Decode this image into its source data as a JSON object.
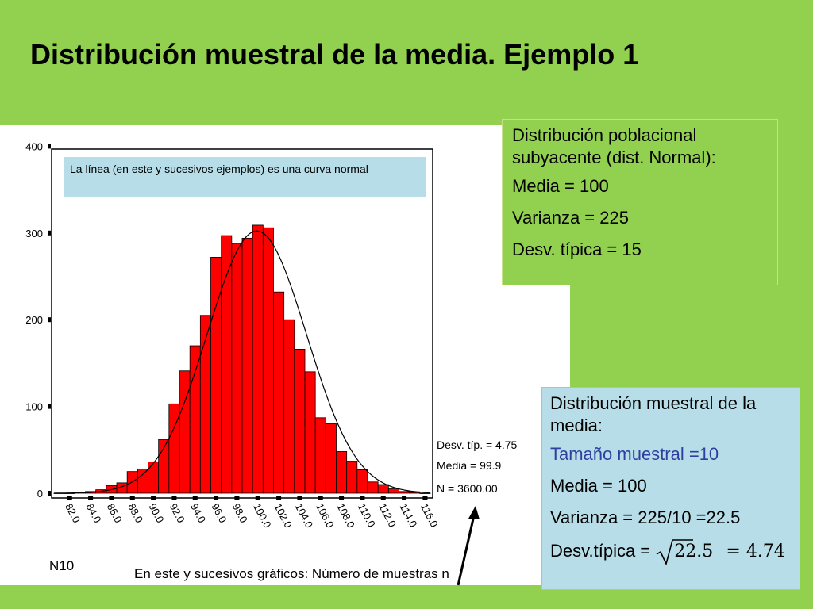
{
  "title": "Distribución muestral de la media. Ejemplo 1",
  "note": "La línea (en este y sucesivos ejemplos) es una curva normal",
  "population_box": {
    "heading": "Distribución poblacional subyacente (dist. Normal):",
    "media": "Media = 100",
    "varianza": "Varianza = 225",
    "desv": "Desv. típica = 15"
  },
  "sample_box": {
    "heading": "Distribución muestral de la media:",
    "tamano": "Tamaño muestral =10",
    "media": "Media = 100",
    "varianza": "Varianza = 225/10 =22.5",
    "desv_label": "Desv.típica =",
    "sqrt_value": "22.5",
    "equals_result": "= 4.74"
  },
  "histogram_label": "N10",
  "bottom_caption": "En este y sucesivos gráficos: Número de muestras n",
  "colors": {
    "background": "#92d050",
    "bars": "#ff0000",
    "note_bg": "#b7dee8",
    "arrow": "#000000"
  },
  "chart_data": {
    "type": "bar",
    "subtype": "histogram",
    "y_ticks": [
      "0",
      "100",
      "200",
      "300",
      "400"
    ],
    "ylim": [
      0,
      400
    ],
    "x_tick_labels": [
      "82.0",
      "84.0",
      "86.0",
      "88.0",
      "90.0",
      "92.0",
      "94.0",
      "96.0",
      "98.0",
      "100.0",
      "102.0",
      "104.0",
      "106.0",
      "108.0",
      "110.0",
      "112.0",
      "114.0",
      "116.0"
    ],
    "bin_centers": [
      81,
      82,
      83,
      84,
      85,
      86,
      87,
      88,
      89,
      90,
      91,
      92,
      93,
      94,
      95,
      96,
      97,
      98,
      99,
      100,
      101,
      102,
      103,
      104,
      105,
      106,
      107,
      108,
      109,
      110,
      111,
      112,
      113,
      114,
      115,
      116
    ],
    "values": [
      0,
      0,
      1,
      2,
      4,
      9,
      12,
      25,
      28,
      36,
      62,
      103,
      141,
      170,
      205,
      272,
      297,
      288,
      294,
      309,
      306,
      232,
      200,
      166,
      140,
      87,
      80,
      48,
      37,
      27,
      13,
      10,
      5,
      2,
      1,
      0
    ],
    "normal_curve": {
      "mean": 99.9,
      "sd": 4.75,
      "n": 3600
    },
    "stats": {
      "desv": "Desv. típ. = 4.75",
      "media": "Media = 99.9",
      "n": "N = 3600.00"
    }
  }
}
